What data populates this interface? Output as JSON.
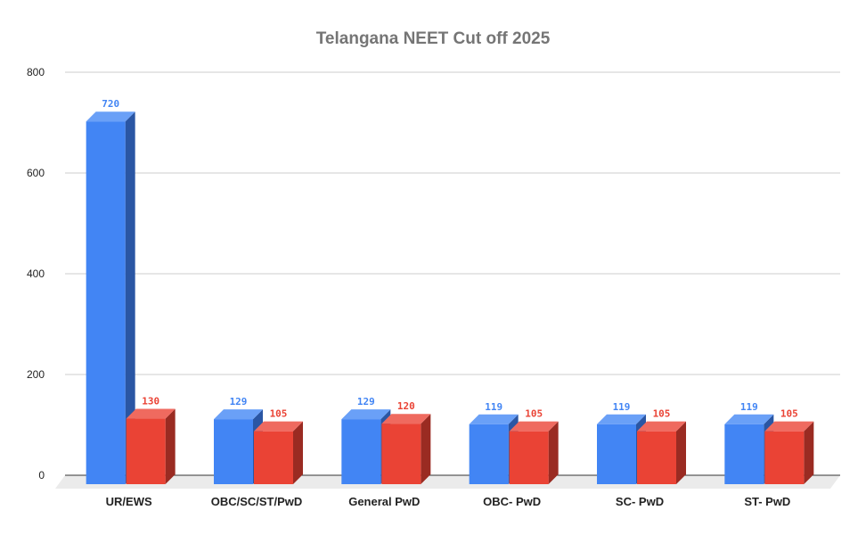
{
  "chart_data": {
    "type": "bar",
    "title": "Telangana NEET Cut off 2025",
    "xlabel": "",
    "ylabel": "",
    "ylim": [
      0,
      800
    ],
    "yticks": [
      "0",
      "200",
      "400",
      "600",
      "800"
    ],
    "grid": true,
    "style": "3d-grouped",
    "categories": [
      "UR/EWS",
      "OBC/SC/ST/PwD",
      "General PwD",
      "OBC- PwD",
      "SC- PwD",
      "ST- PwD"
    ],
    "series": [
      {
        "values": [
          720,
          129,
          129,
          119,
          119,
          119
        ],
        "color": "#4285f4",
        "side": "#2a56a4",
        "top": "#6aa0f7"
      },
      {
        "values": [
          130,
          105,
          120,
          105,
          105,
          105
        ],
        "color": "#ea4335",
        "side": "#9a2b22",
        "top": "#ef6a5f"
      }
    ]
  }
}
